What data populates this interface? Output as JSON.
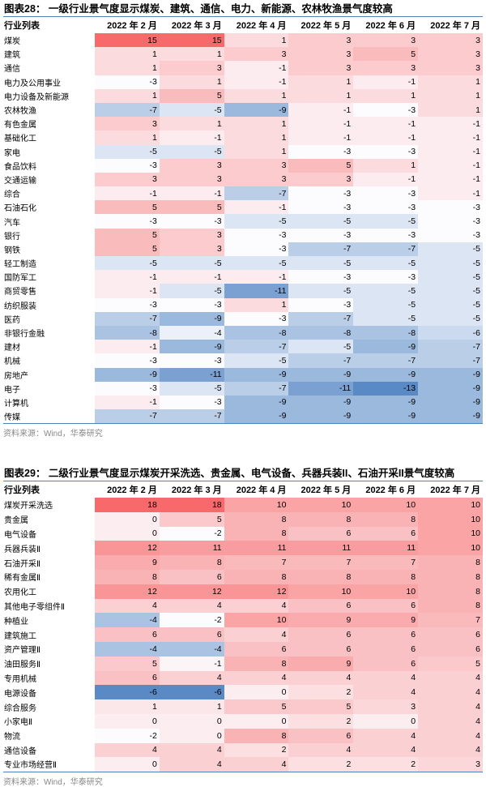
{
  "chart_data": [
    {
      "type": "heatmap",
      "title": "图表28：  一级行业景气度显示煤炭、建筑、通信、电力、新能源、农林牧渔景气度较高",
      "row_header": "行业列表",
      "columns": [
        "2022 年 2 月",
        "2022 年 3 月",
        "2022 年 4 月",
        "2022 年 5 月",
        "2022 年 6 月",
        "2022 年 7 月"
      ],
      "rows": [
        {
          "label": "煤炭",
          "values": [
            15,
            15,
            1,
            3,
            3,
            3
          ]
        },
        {
          "label": "建筑",
          "values": [
            1,
            1,
            3,
            3,
            5,
            3
          ]
        },
        {
          "label": "通信",
          "values": [
            1,
            3,
            -1,
            3,
            3,
            3
          ]
        },
        {
          "label": "电力及公用事业",
          "values": [
            -3,
            1,
            -1,
            1,
            -1,
            1
          ]
        },
        {
          "label": "电力设备及新能源",
          "values": [
            1,
            5,
            1,
            1,
            1,
            1
          ]
        },
        {
          "label": "农林牧渔",
          "values": [
            -7,
            -5,
            -9,
            -1,
            -3,
            1
          ]
        },
        {
          "label": "有色金属",
          "values": [
            3,
            1,
            1,
            -1,
            -1,
            -1
          ]
        },
        {
          "label": "基础化工",
          "values": [
            1,
            -1,
            1,
            -1,
            -1,
            -1
          ]
        },
        {
          "label": "家电",
          "values": [
            -5,
            -5,
            1,
            -3,
            -3,
            -1
          ]
        },
        {
          "label": "食品饮料",
          "values": [
            -3,
            3,
            3,
            5,
            1,
            -1
          ]
        },
        {
          "label": "交通运输",
          "values": [
            3,
            3,
            3,
            3,
            -1,
            -1
          ]
        },
        {
          "label": "综合",
          "values": [
            -1,
            -1,
            -7,
            -3,
            -3,
            -1
          ]
        },
        {
          "label": "石油石化",
          "values": [
            5,
            5,
            -1,
            -3,
            -3,
            -3
          ]
        },
        {
          "label": "汽车",
          "values": [
            -3,
            -3,
            -5,
            -5,
            -5,
            -3
          ]
        },
        {
          "label": "银行",
          "values": [
            5,
            3,
            -3,
            -3,
            -3,
            -3
          ]
        },
        {
          "label": "钢铁",
          "values": [
            5,
            3,
            -3,
            -7,
            -7,
            -5
          ]
        },
        {
          "label": "轻工制造",
          "values": [
            -5,
            -5,
            -5,
            -5,
            -5,
            -5
          ]
        },
        {
          "label": "国防军工",
          "values": [
            -1,
            -1,
            -1,
            -3,
            -3,
            -5
          ]
        },
        {
          "label": "商贸零售",
          "values": [
            -1,
            -5,
            -11,
            -5,
            -5,
            -5
          ]
        },
        {
          "label": "纺织服装",
          "values": [
            -3,
            -3,
            1,
            -3,
            -5,
            -5
          ]
        },
        {
          "label": "医药",
          "values": [
            -7,
            -9,
            -3,
            -7,
            -5,
            -5
          ]
        },
        {
          "label": "非银行金融",
          "values": [
            -8,
            -4,
            -8,
            -8,
            -8,
            -6
          ]
        },
        {
          "label": "建材",
          "values": [
            -1,
            -9,
            -7,
            -5,
            -9,
            -7
          ]
        },
        {
          "label": "机械",
          "values": [
            -3,
            -3,
            -5,
            -7,
            -7,
            -7
          ]
        },
        {
          "label": "房地产",
          "values": [
            -9,
            -11,
            -9,
            -9,
            -9,
            -9
          ]
        },
        {
          "label": "电子",
          "values": [
            -3,
            -5,
            -7,
            -11,
            -13,
            -9
          ]
        },
        {
          "label": "计算机",
          "values": [
            -1,
            -3,
            -9,
            -9,
            -9,
            -9
          ]
        },
        {
          "label": "传媒",
          "values": [
            -7,
            -7,
            -9,
            -9,
            -9,
            -9
          ]
        }
      ],
      "source": "资料来源：Wind，华泰研究",
      "scale": {
        "min": -13,
        "mid": -3,
        "max": 15,
        "min_color": "#5a8ac6",
        "mid_color": "#fcfcff",
        "max_color": "#f8696b"
      }
    },
    {
      "type": "heatmap",
      "title": "图表29：  二级行业景气度显示煤炭开采洗选、贵金属、电气设备、兵器兵装II、石油开采II景气度较高",
      "row_header": "行业列表",
      "columns": [
        "2022 年 2 月",
        "2022 年 3 月",
        "2022 年 4 月",
        "2022 年 5 月",
        "2022 年 6 月",
        "2022 年 7 月"
      ],
      "rows": [
        {
          "label": "煤炭开采洗选",
          "values": [
            18,
            18,
            10,
            10,
            10,
            10
          ]
        },
        {
          "label": "贵金属",
          "values": [
            0,
            5,
            8,
            8,
            8,
            10
          ]
        },
        {
          "label": "电气设备",
          "values": [
            0,
            -2,
            8,
            6,
            6,
            10
          ]
        },
        {
          "label": "兵器兵装Ⅱ",
          "values": [
            12,
            11,
            11,
            11,
            11,
            10
          ]
        },
        {
          "label": "石油开采Ⅱ",
          "values": [
            9,
            8,
            7,
            7,
            7,
            8
          ]
        },
        {
          "label": "稀有金属Ⅱ",
          "values": [
            8,
            6,
            8,
            8,
            8,
            8
          ]
        },
        {
          "label": "农用化工",
          "values": [
            12,
            12,
            12,
            10,
            10,
            8
          ]
        },
        {
          "label": "其他电子零组件Ⅱ",
          "values": [
            4,
            4,
            4,
            6,
            6,
            8
          ]
        },
        {
          "label": "种植业",
          "values": [
            -4,
            -2,
            10,
            9,
            9,
            7
          ]
        },
        {
          "label": "建筑施工",
          "values": [
            6,
            6,
            4,
            6,
            6,
            6
          ]
        },
        {
          "label": "资产管理Ⅱ",
          "values": [
            -4,
            -4,
            6,
            6,
            6,
            6
          ]
        },
        {
          "label": "油田服务Ⅱ",
          "values": [
            5,
            -1,
            8,
            9,
            6,
            5
          ]
        },
        {
          "label": "专用机械",
          "values": [
            6,
            4,
            4,
            4,
            4,
            4
          ]
        },
        {
          "label": "电源设备",
          "values": [
            -6,
            -6,
            0,
            2,
            4,
            4
          ]
        },
        {
          "label": "综合服务",
          "values": [
            1,
            1,
            5,
            5,
            3,
            4
          ]
        },
        {
          "label": "小家电Ⅱ",
          "values": [
            0,
            0,
            0,
            2,
            0,
            4
          ]
        },
        {
          "label": "物流",
          "values": [
            -2,
            0,
            8,
            6,
            4,
            4
          ]
        },
        {
          "label": "通信设备",
          "values": [
            4,
            4,
            2,
            4,
            4,
            4
          ]
        },
        {
          "label": "专业市场经营Ⅱ",
          "values": [
            0,
            4,
            4,
            2,
            2,
            3
          ]
        }
      ],
      "source": "资料来源：Wind，华泰研究",
      "scale": {
        "min": -6,
        "mid": -2,
        "max": 18,
        "min_color": "#5a8ac6",
        "mid_color": "#fcfcff",
        "max_color": "#f8696b"
      }
    }
  ]
}
